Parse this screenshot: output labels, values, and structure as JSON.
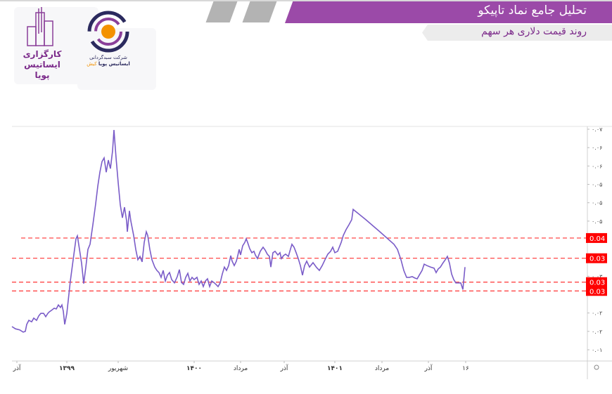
{
  "header": {
    "title": "تحلیل جامع نماد تاپیکو",
    "subtitle": "روند قیمت دلاری هر سهم"
  },
  "logos": {
    "broker": "کارگزاری ایساتیس پویا",
    "fund_manager_line1": "شرکت سبدگردانی",
    "fund_manager_line2": "ایساتیس پویا",
    "fund_manager_accent": "کیش"
  },
  "colors": {
    "banner": "#9b4aa8",
    "line": "#7a5cc8",
    "levels": "#ff3333",
    "orange": "#f39200",
    "navy": "#2b2a5e"
  },
  "chart_data": {
    "type": "line",
    "title": "",
    "y_axis_position": "right",
    "ylim": [
      0.01,
      0.07
    ],
    "y_tick_labels": [
      "۰.۰۷",
      "۰.۰۶",
      "۰.۰۶",
      "۰.۰۵",
      "۰.۰۵",
      "۰.۰۵",
      "۰.۰۳",
      "۰.۰۲",
      "۰.۰۲",
      "۰.۰۱"
    ],
    "y_tick_values": [
      0.07,
      0.065,
      0.06,
      0.055,
      0.05,
      0.045,
      0.03,
      0.02,
      0.015,
      0.01
    ],
    "x_tick_labels": [
      "آذر",
      "۱۳۹۹",
      "شهریور",
      "۱۴۰۰",
      "مرداد",
      "آذر",
      "۱۴۰۱",
      "مرداد",
      "آذر",
      "۱۶"
    ],
    "levels": [
      {
        "value": 0.0404,
        "label": "0.04"
      },
      {
        "value": 0.0349,
        "label": "0.03"
      },
      {
        "value": 0.0284,
        "label": "0.03"
      },
      {
        "value": 0.026,
        "label": "0.03"
      }
    ],
    "series": [
      {
        "values": [
          0.0163,
          0.0157,
          0.0154,
          0.0148,
          0.015,
          0.0169,
          0.018,
          0.0176,
          0.0186,
          0.018,
          0.0192,
          0.0199,
          0.0199,
          0.019,
          0.0199,
          0.0203,
          0.0207,
          0.0213,
          0.0211,
          0.0222,
          0.0215,
          0.0222,
          0.0205,
          0.0169,
          0.0199,
          0.0287,
          0.0345,
          0.0402,
          0.041,
          0.0373,
          0.0335,
          0.028,
          0.0325,
          0.0373,
          0.0387,
          0.044,
          0.0497,
          0.0545,
          0.0583,
          0.0612,
          0.0622,
          0.0583,
          0.0616,
          0.0593,
          0.0641,
          0.0698,
          0.0622,
          0.0555,
          0.0494,
          0.0459,
          0.0488,
          0.045,
          0.0421,
          0.0478,
          0.045,
          0.0411,
          0.0373,
          0.0345,
          0.0354,
          0.0339,
          0.0392,
          0.0421,
          0.0411,
          0.0373,
          0.0345,
          0.0325,
          0.0316,
          0.031,
          0.0297,
          0.0316,
          0.0287,
          0.0303,
          0.031,
          0.0291,
          0.0282,
          0.0299,
          0.0318,
          0.0283,
          0.0278,
          0.0297,
          0.0308,
          0.0287,
          0.0297,
          0.0291,
          0.0297,
          0.0278,
          0.0287,
          0.0272,
          0.0287,
          0.0293,
          0.0272,
          0.0287,
          0.0283,
          0.0278,
          0.0272,
          0.0282,
          0.0306,
          0.0325,
          0.0316,
          0.0329,
          0.0356,
          0.0341,
          0.0329,
          0.0341,
          0.0356,
          0.0373,
          0.0358,
          0.0383,
          0.0392,
          0.0402,
          0.0392,
          0.0375,
          0.0364,
          0.0368,
          0.0358,
          0.0348,
          0.0368,
          0.0379,
          0.0371,
          0.036,
          0.0354,
          0.0325,
          0.0364,
          0.0368,
          0.0358,
          0.0364,
          0.0348,
          0.0356,
          0.036,
          0.0354,
          0.0368,
          0.0387,
          0.0379,
          0.0364,
          0.0348,
          0.0329,
          0.0303,
          0.0329,
          0.0341,
          0.0325,
          0.0337,
          0.0324,
          0.0316,
          0.0329,
          0.0345,
          0.036,
          0.0368,
          0.0379,
          0.0364,
          0.0368,
          0.0392,
          0.0411,
          0.0427,
          0.044,
          0.0454,
          0.0482,
          0.0454,
          0.0421,
          0.0387,
          0.0373,
          0.0345,
          0.0316,
          0.0297,
          0.0297,
          0.0299,
          0.0295,
          0.0293,
          0.0303,
          0.0316,
          0.0333,
          0.0329,
          0.0325,
          0.0322,
          0.031,
          0.032,
          0.0325,
          0.0337,
          0.0345,
          0.0354,
          0.0335,
          0.0306,
          0.0291,
          0.0282,
          0.0282,
          0.0282,
          0.0264,
          0.0325
        ]
      }
    ]
  }
}
